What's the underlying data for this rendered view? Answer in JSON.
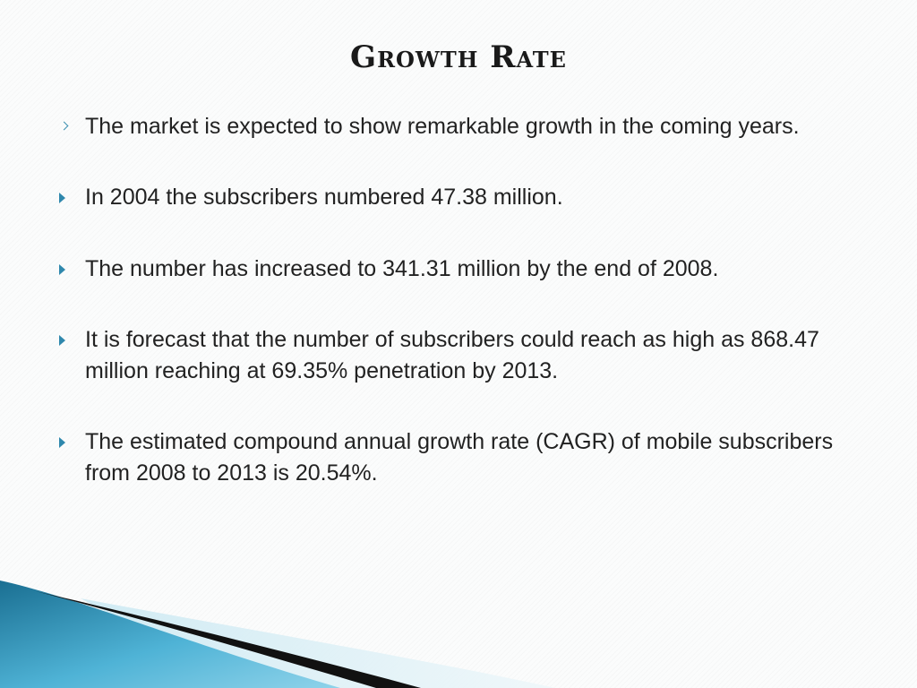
{
  "slide": {
    "title": "Growth Rate",
    "bullets": [
      {
        "text": "The market is expected to show remarkable growth in the coming years."
      },
      {
        "text": "In 2004 the subscribers numbered 47.38 million."
      },
      {
        "text": "The number has increased to 341.31 million by the end of 2008."
      },
      {
        "text": "It is forecast that the number of subscribers could reach as high as 868.47 million reaching at 69.35% penetration by 2013."
      },
      {
        "text": "The estimated compound annual growth rate (CAGR) of mobile subscribers from 2008 to 2013 is 20.54%."
      }
    ]
  },
  "theme": {
    "accent_color": "#2f88ad",
    "wave_color_dark": "#1a6f92",
    "wave_color_light": "#6cc3e0",
    "band_color": "#111111"
  }
}
